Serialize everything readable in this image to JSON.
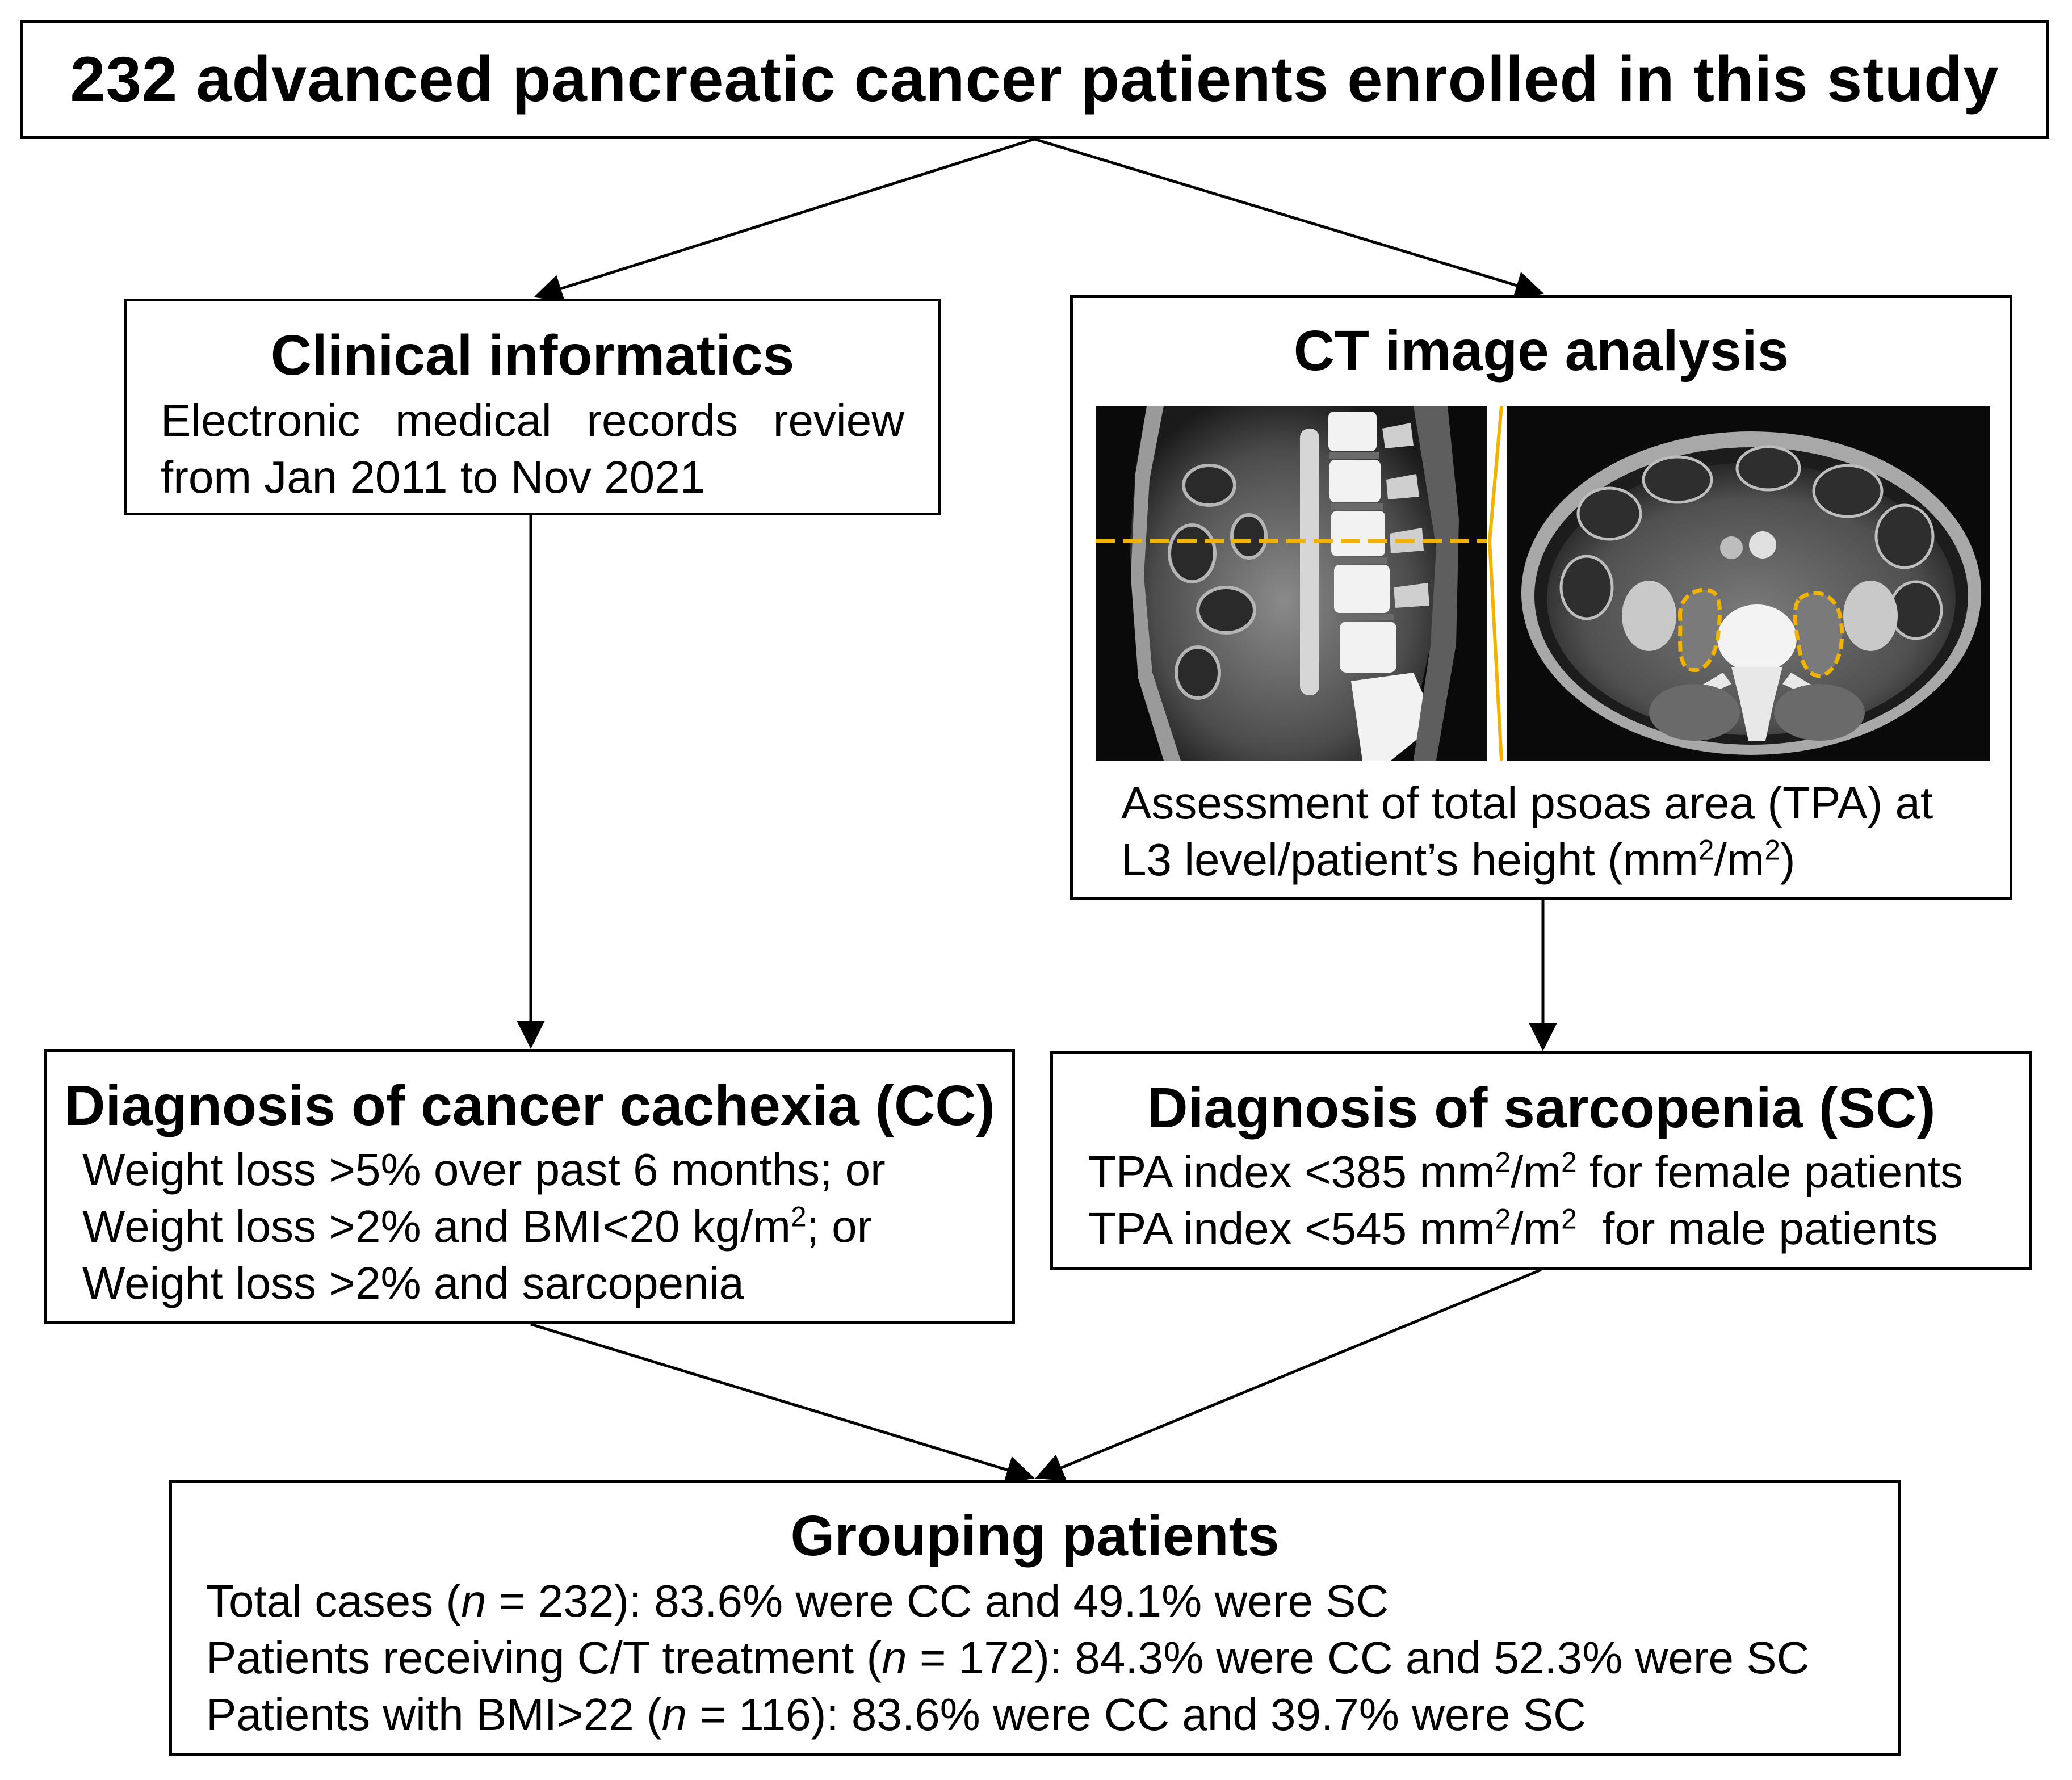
{
  "top": {
    "title": "232 advanced pancreatic cancer patients enrolled in this study"
  },
  "clinical": {
    "title": "Clinical informatics",
    "line1_words": [
      "Electronic",
      "medical",
      "records",
      "review"
    ],
    "line2": "from Jan 2011 to Nov 2021"
  },
  "ct": {
    "title": "CT image analysis",
    "caption_line1": "Assessment of total psoas area (TPA) at",
    "caption_line2_a": "L3 level/patient’s height (mm",
    "caption_line2_sup1": "2",
    "caption_line2_b": "/m",
    "caption_line2_sup2": "2",
    "caption_line2_c": ")",
    "images": [
      "sagittal-ct-scan",
      "axial-ct-scan-psoas"
    ],
    "accent_color": "#f2b200"
  },
  "cc": {
    "title": "Diagnosis of cancer cachexia (CC)",
    "line1": "Weight loss >5% over past 6 months; or",
    "line2_a": "Weight loss >2% and BMI<20 kg/m",
    "line2_sup": "2",
    "line2_b": "; or",
    "line3": "Weight loss >2% and sarcopenia"
  },
  "sc": {
    "title": "Diagnosis of sarcopenia (SC)",
    "line1_a": "TPA index <385 mm",
    "line1_sup1": "2",
    "line1_b": "/m",
    "line1_sup2": "2",
    "line1_c": " for female patients",
    "line2_a": "TPA index <545 mm",
    "line2_sup1": "2",
    "line2_b": "/m",
    "line2_sup2": "2",
    "line2_c": "  for male patients"
  },
  "group": {
    "title": "Grouping patients",
    "r1_a": "Total cases (",
    "r1_n": "n",
    "r1_b": " = 232): 83.6% were CC and 49.1% were SC",
    "r2_a": "Patients receiving C/T treatment (",
    "r2_n": "n",
    "r2_b": " = 172): 84.3% were CC and 52.3% were SC",
    "r3_a": "Patients with BMI>22 (",
    "r3_n": "n",
    "r3_b": " = 116): 83.6% were CC and 39.7% were SC"
  }
}
